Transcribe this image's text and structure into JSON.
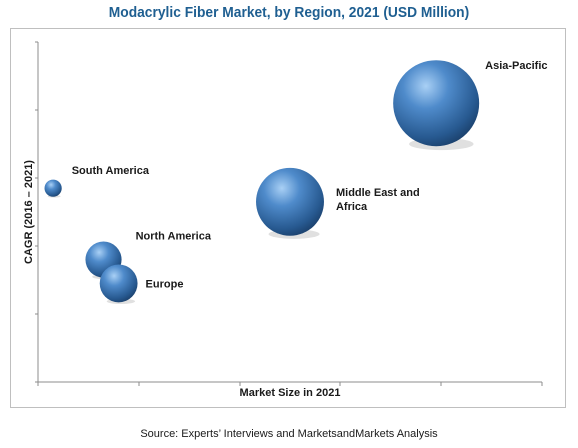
{
  "chart_data": {
    "type": "bubble",
    "title": "Modacrylic Fiber Market, by Region, 2021 (USD Million)",
    "xlabel": "Market Size in 2021",
    "ylabel": "CAGR (2016 – 2021)",
    "source": "Source: Experts’ Interviews and MarketsandMarkets Analysis",
    "x_ticks_visible": false,
    "y_ticks_visible": false,
    "legend": "none",
    "grid": false,
    "bubble_color": "#3f78b8",
    "series": [
      {
        "label_lines": [
          "Asia-Pacific"
        ],
        "x": 0.79,
        "y": 0.82,
        "size": 1.0
      },
      {
        "label_lines": [
          "Middle East and",
          "Africa"
        ],
        "x": 0.5,
        "y": 0.53,
        "size": 0.79
      },
      {
        "label_lines": [
          "South America"
        ],
        "x": 0.03,
        "y": 0.57,
        "size": 0.2
      },
      {
        "label_lines": [
          "North America"
        ],
        "x": 0.13,
        "y": 0.36,
        "size": 0.42
      },
      {
        "label_lines": [
          "Europe"
        ],
        "x": 0.16,
        "y": 0.29,
        "size": 0.44
      }
    ]
  }
}
